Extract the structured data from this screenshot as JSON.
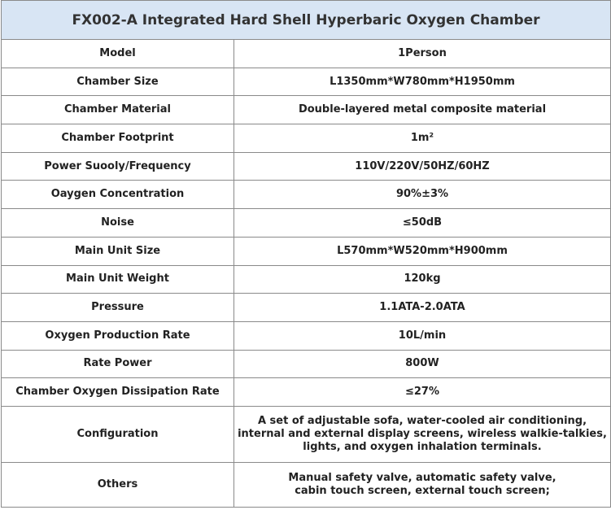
{
  "header": {
    "title": "FX002-A  Integrated Hard Shell Hyperbaric Oxygen Chamber"
  },
  "table": {
    "rows": [
      [
        "Model",
        "1Person"
      ],
      [
        "Chamber Size",
        "L1350mm*W780mm*H1950mm"
      ],
      [
        "Chamber Material",
        "Double-layered metal composite material"
      ],
      [
        "Chamber Footprint",
        "1m²"
      ],
      [
        "Power Suooly/Frequency",
        "110V/220V/50HZ/60HZ"
      ],
      [
        "Oaygen Concentration",
        "90%±3%"
      ],
      [
        "Noise",
        "≤50dB"
      ],
      [
        "Main Unit Size",
        "L570mm*W520mm*H900mm"
      ],
      [
        "Main Unit Weight",
        "120kg"
      ],
      [
        "Pressure",
        "1.1ATA-2.0ATA"
      ],
      [
        "Oxygen Production Rate",
        "10L/min"
      ],
      [
        "Rate Power",
        "800W"
      ],
      [
        "Chamber Oxygen Dissipation Rate",
        "≤27%"
      ],
      [
        "Configuration",
        [
          "A set of adjustable sofa,  water-cooled air conditioning,",
          "internal and external display screens,  wireless walkie-talkies,",
          "lights,  and oxygen inhalation terminals."
        ]
      ],
      [
        "Others",
        [
          "Manual safety valve,  automatic safety valve,",
          "cabin touch screen, external touch screen;"
        ]
      ]
    ]
  }
}
